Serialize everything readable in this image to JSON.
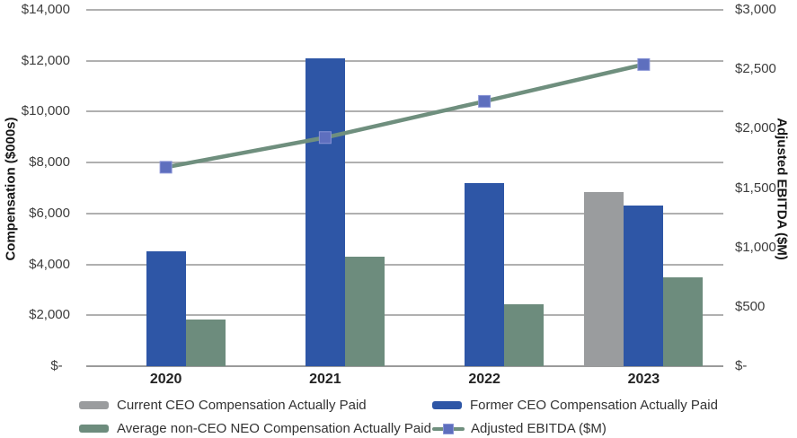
{
  "chart_data": {
    "type": "bar",
    "subtype": "combo-bar-line-dual-axis",
    "categories": [
      "2020",
      "2021",
      "2022",
      "2023"
    ],
    "series": [
      {
        "name": "Current CEO Compensation Actually Paid",
        "render": "bar",
        "axis": "left",
        "color": "#9a9c9e",
        "values": [
          null,
          null,
          null,
          6850
        ]
      },
      {
        "name": "Former CEO Compensation Actually Paid",
        "render": "bar",
        "axis": "left",
        "color": "#2e56a6",
        "values": [
          4500,
          12100,
          7200,
          6300
        ]
      },
      {
        "name": "Average non-CEO NEO Compensation Actually Paid",
        "render": "bar",
        "axis": "left",
        "color": "#6d8c7d",
        "values": [
          1850,
          4300,
          2450,
          3500
        ]
      },
      {
        "name": "Adjusted EBITDA ($M)",
        "render": "line",
        "axis": "right",
        "color": "#6f8f7e",
        "marker_color": "#5e6fbe",
        "marker_border": "#8a94d6",
        "values": [
          1675,
          1925,
          2230,
          2540
        ]
      }
    ],
    "left_axis": {
      "title": "Compensation ($000s)",
      "min": 0,
      "max": 14000,
      "tick_step": 2000,
      "ticks": [
        "$14,000",
        "$12,000",
        "$10,000",
        "$8,000",
        "$6,000",
        "$4,000",
        "$2,000",
        "$-  "
      ]
    },
    "right_axis": {
      "title": "Adjusted EBITDA ($M)",
      "min": 0,
      "max": 3000,
      "tick_step": 500,
      "ticks": [
        "$3,000",
        "$2,500",
        "$2,000",
        "$1,500",
        "$1,000",
        "$500",
        "$-"
      ]
    },
    "grid": true,
    "legend_position": "bottom-two-columns",
    "title": "",
    "xlabel": ""
  },
  "layout_colors": {
    "gridline": "#b0b0b0",
    "axis_line": "#9b9b9b",
    "background": "#ffffff"
  }
}
